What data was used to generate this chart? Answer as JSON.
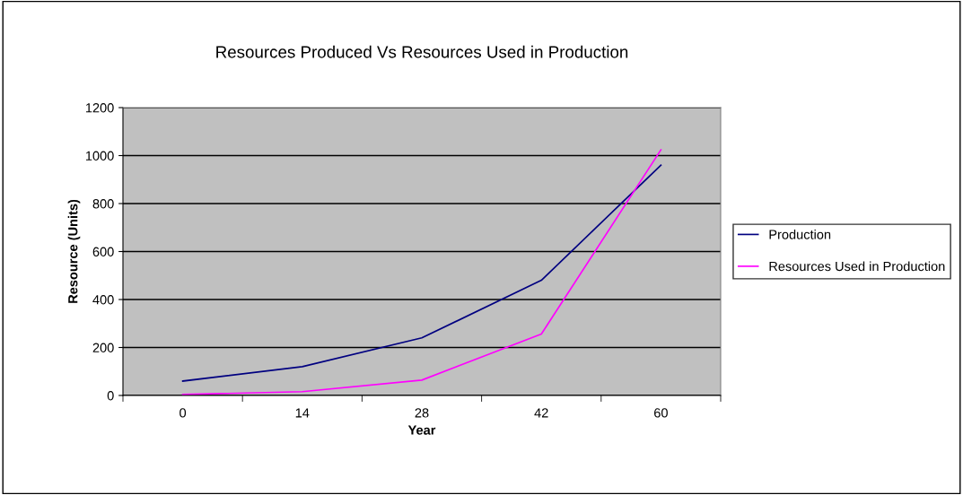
{
  "chart_data": {
    "type": "line",
    "title": "Resources Produced Vs Resources Used in Production",
    "xlabel": "Year",
    "ylabel": "Resource (Units)",
    "categories": [
      "0",
      "14",
      "28",
      "42",
      "60"
    ],
    "series": [
      {
        "name": "Production",
        "color": "#000080",
        "values": [
          60,
          120,
          240,
          480,
          960
        ]
      },
      {
        "name": "Resources Used in Production",
        "color": "#ff00ff",
        "values": [
          4,
          16,
          64,
          256,
          1024
        ]
      }
    ],
    "ylim": [
      0,
      1200
    ],
    "yticks": [
      0,
      200,
      400,
      600,
      800,
      1000,
      1200
    ],
    "grid": "y",
    "legend": "right",
    "marker": "none",
    "line_style": "solid"
  }
}
